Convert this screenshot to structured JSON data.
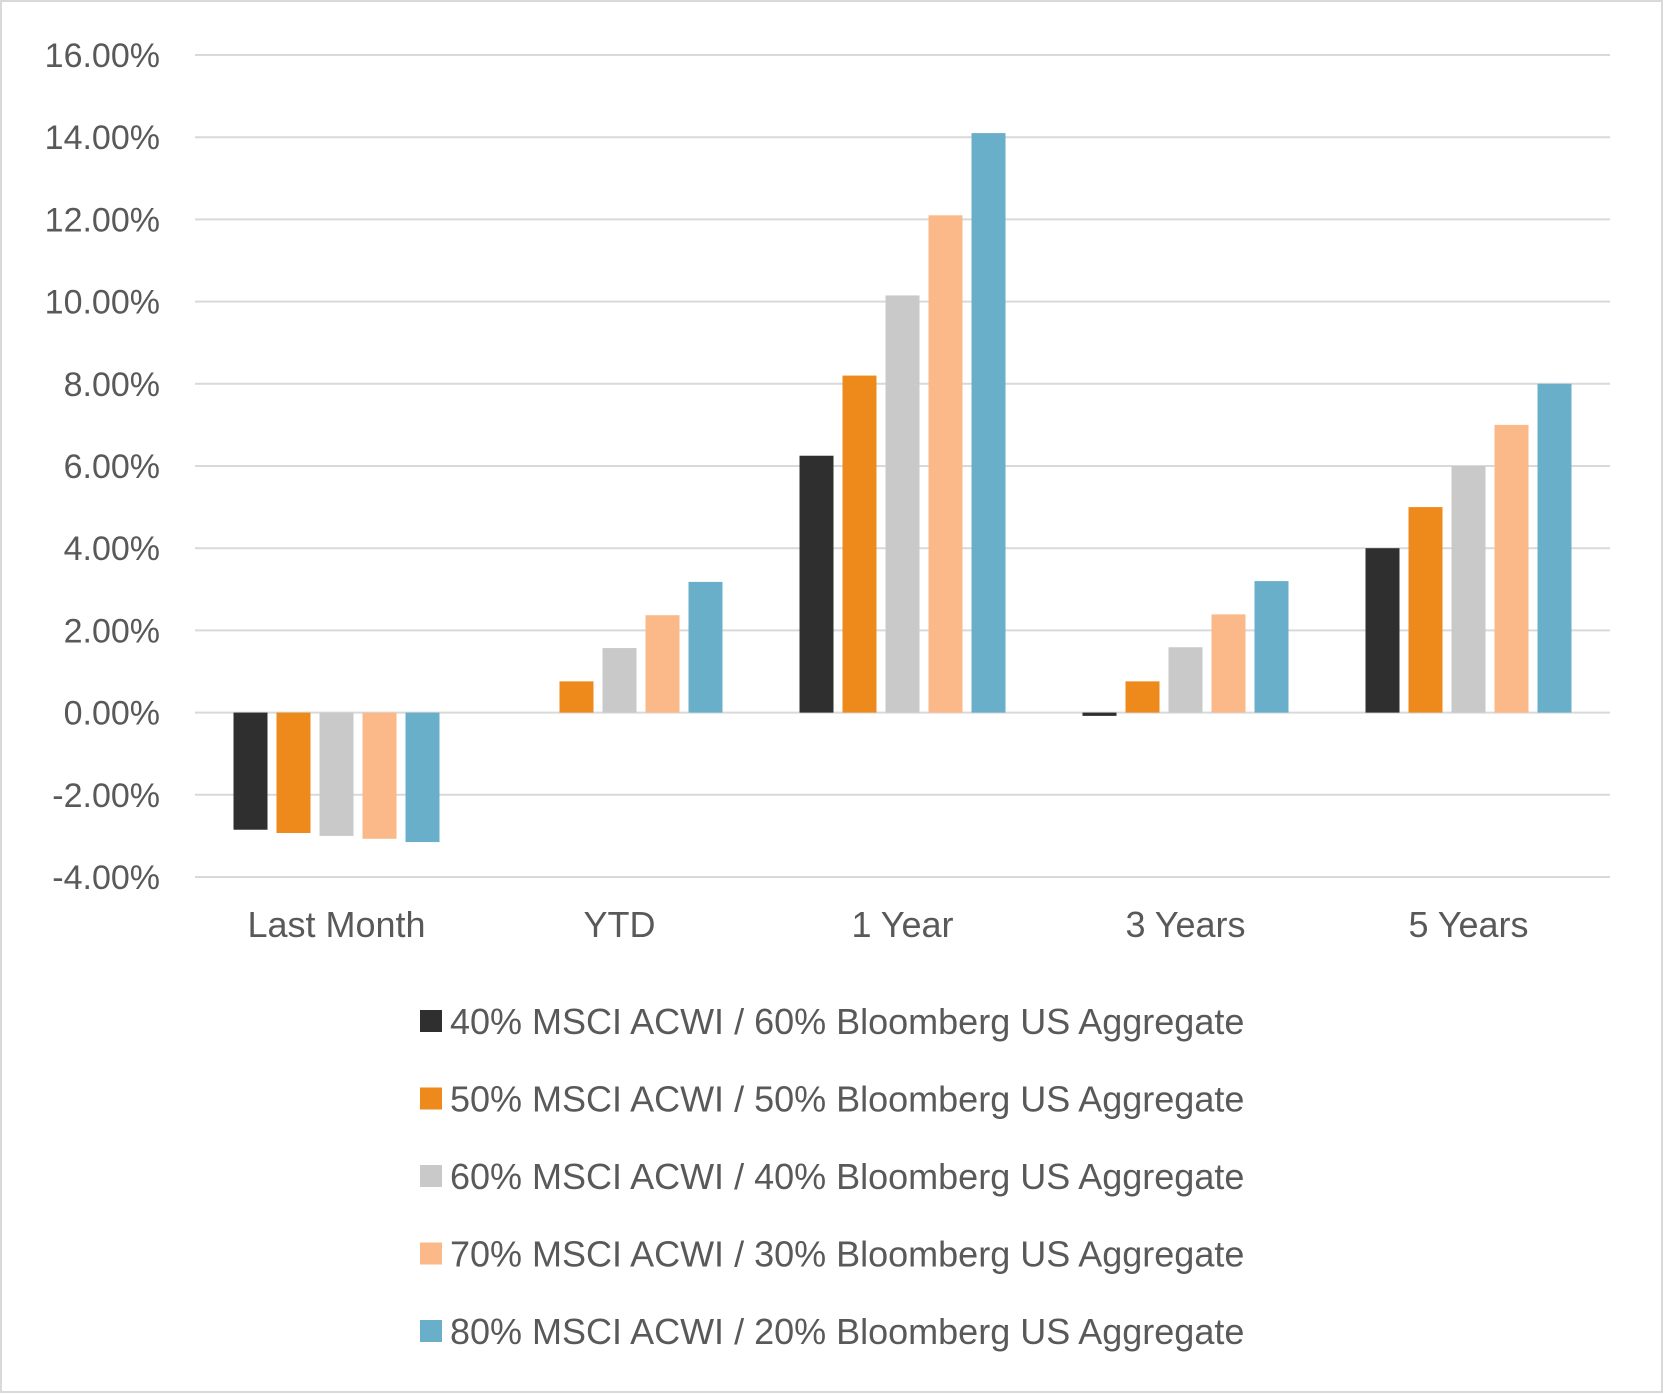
{
  "chart_data": {
    "type": "bar",
    "title": "",
    "xlabel": "",
    "ylabel": "",
    "ylim": [
      -4,
      16
    ],
    "y_ticks": [
      "16.00%",
      "14.00%",
      "12.00%",
      "10.00%",
      "8.00%",
      "6.00%",
      "4.00%",
      "2.00%",
      "0.00%",
      "-2.00%",
      "-4.00%"
    ],
    "y_tick_values": [
      16,
      14,
      12,
      10,
      8,
      6,
      4,
      2,
      0,
      -2,
      -4
    ],
    "categories": [
      "Last Month",
      "YTD",
      "1 Year",
      "3 Years",
      "5 Years"
    ],
    "grid": true,
    "legend_position": "bottom",
    "series": [
      {
        "name": "40% MSCI ACWI / 60% Bloomberg US Aggregate",
        "color": "#2f2f2f",
        "values": [
          -2.85,
          0.0,
          6.25,
          -0.08,
          4.0
        ]
      },
      {
        "name": "50% MSCI ACWI / 50% Bloomberg US Aggregate",
        "color": "#ed8a1b",
        "values": [
          -2.93,
          0.76,
          8.2,
          0.76,
          5.0
        ]
      },
      {
        "name": "60% MSCI ACWI / 40% Bloomberg US Aggregate",
        "color": "#c9c9c9",
        "values": [
          -3.0,
          1.57,
          10.15,
          1.59,
          6.0
        ]
      },
      {
        "name": "70% MSCI ACWI / 30% Bloomberg US Aggregate",
        "color": "#fbb889",
        "values": [
          -3.07,
          2.37,
          12.1,
          2.39,
          7.0
        ]
      },
      {
        "name": "80% MSCI ACWI / 20% Bloomberg US Aggregate",
        "color": "#6aafc9",
        "values": [
          -3.15,
          3.18,
          14.1,
          3.2,
          8.0
        ]
      }
    ]
  }
}
